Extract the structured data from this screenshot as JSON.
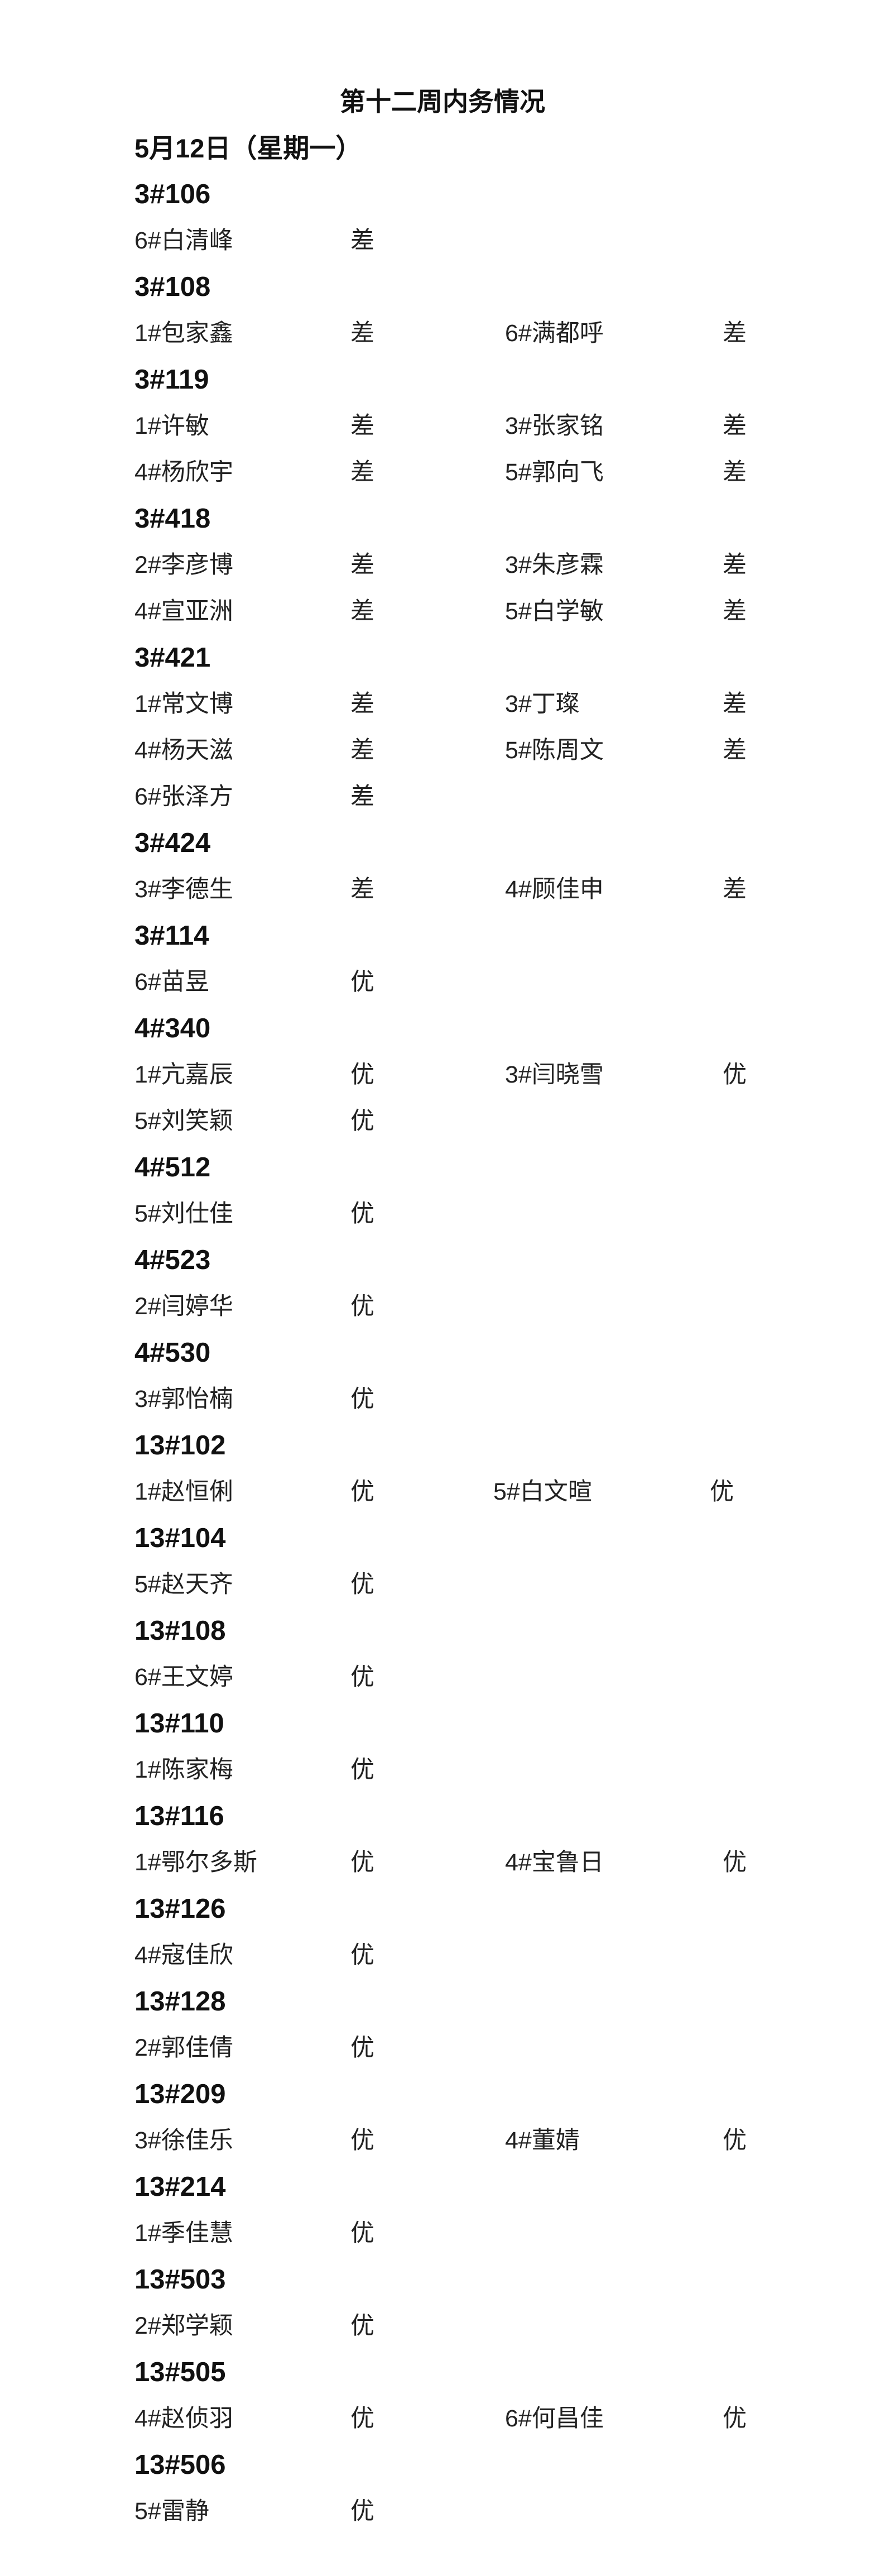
{
  "title": "第十二周内务情况",
  "date": "5月12日（星期一）",
  "sections": [
    {
      "room": "3#106",
      "rows": [
        [
          [
            "6#白清峰",
            "差"
          ]
        ]
      ]
    },
    {
      "room": "3#108",
      "rows": [
        [
          [
            "1#包家鑫",
            "差"
          ],
          [
            "6#满都呼",
            "差"
          ]
        ]
      ]
    },
    {
      "room": "3#119",
      "rows": [
        [
          [
            "1#许敏",
            "差"
          ],
          [
            "3#张家铭",
            "差"
          ]
        ],
        [
          [
            "4#杨欣宇",
            "差"
          ],
          [
            "5#郭向飞",
            "差"
          ]
        ]
      ]
    },
    {
      "room": "3#418",
      "rows": [
        [
          [
            "2#李彦博",
            "差"
          ],
          [
            "3#朱彦霖",
            "差"
          ]
        ],
        [
          [
            "4#宣亚洲",
            "差"
          ],
          [
            "5#白学敏",
            "差"
          ]
        ]
      ]
    },
    {
      "room": "3#421",
      "rows": [
        [
          [
            "1#常文博",
            "差"
          ],
          [
            "3#丁璨",
            "差"
          ]
        ],
        [
          [
            "4#杨天滋",
            "差"
          ],
          [
            "5#陈周文",
            "差"
          ]
        ],
        [
          [
            "6#张泽方",
            "差"
          ]
        ]
      ]
    },
    {
      "room": "3#424",
      "rows": [
        [
          [
            "3#李德生",
            "差"
          ],
          [
            "4#顾佳申",
            "差"
          ]
        ]
      ]
    },
    {
      "room": "3#114",
      "rows": [
        [
          [
            "6#苗昱",
            "优"
          ]
        ]
      ]
    },
    {
      "room": "4#340",
      "rows": [
        [
          [
            "1#亢嘉辰",
            "优"
          ],
          [
            "3#闫晓雪",
            "优"
          ]
        ],
        [
          [
            "5#刘笑颖",
            "优"
          ]
        ]
      ]
    },
    {
      "room": "4#512",
      "rows": [
        [
          [
            "5#刘仕佳",
            "优"
          ]
        ]
      ]
    },
    {
      "room": "4#523",
      "rows": [
        [
          [
            "2#闫婷华",
            "优"
          ]
        ]
      ]
    },
    {
      "room": "4#530",
      "rows": [
        [
          [
            "3#郭怡楠",
            "优"
          ]
        ]
      ]
    },
    {
      "room": "13#102",
      "rows": [
        [
          [
            "1#赵恒俐",
            "优"
          ],
          [
            "5#白文暄",
            "优"
          ]
        ]
      ]
    },
    {
      "room": "13#104",
      "rows": [
        [
          [
            "5#赵天齐",
            "优"
          ]
        ]
      ]
    },
    {
      "room": "13#108",
      "rows": [
        [
          [
            "6#王文婷",
            "优"
          ]
        ]
      ]
    },
    {
      "room": "13#110",
      "rows": [
        [
          [
            "1#陈家梅",
            "优"
          ]
        ]
      ]
    },
    {
      "room": "13#116",
      "rows": [
        [
          [
            "1#鄂尔多斯",
            "优"
          ],
          [
            "4#宝鲁日",
            "优"
          ]
        ]
      ]
    },
    {
      "room": "13#126",
      "rows": [
        [
          [
            "4#寇佳欣",
            "优"
          ]
        ]
      ]
    },
    {
      "room": "13#128",
      "rows": [
        [
          [
            "2#郭佳倩",
            "优"
          ]
        ]
      ]
    },
    {
      "room": "13#209",
      "rows": [
        [
          [
            "3#徐佳乐",
            "优"
          ],
          [
            "4#董婧",
            "优"
          ]
        ]
      ]
    },
    {
      "room": "13#214",
      "rows": [
        [
          [
            "1#季佳慧",
            "优"
          ]
        ]
      ]
    },
    {
      "room": "13#503",
      "rows": [
        [
          [
            "2#郑学颖",
            "优"
          ]
        ]
      ]
    },
    {
      "room": "13#505",
      "rows": [
        [
          [
            "4#赵侦羽",
            "优"
          ],
          [
            "6#何昌佳",
            "优"
          ]
        ]
      ]
    },
    {
      "room": "13#506",
      "rows": [
        [
          [
            "5#雷静",
            "优"
          ]
        ]
      ]
    }
  ]
}
